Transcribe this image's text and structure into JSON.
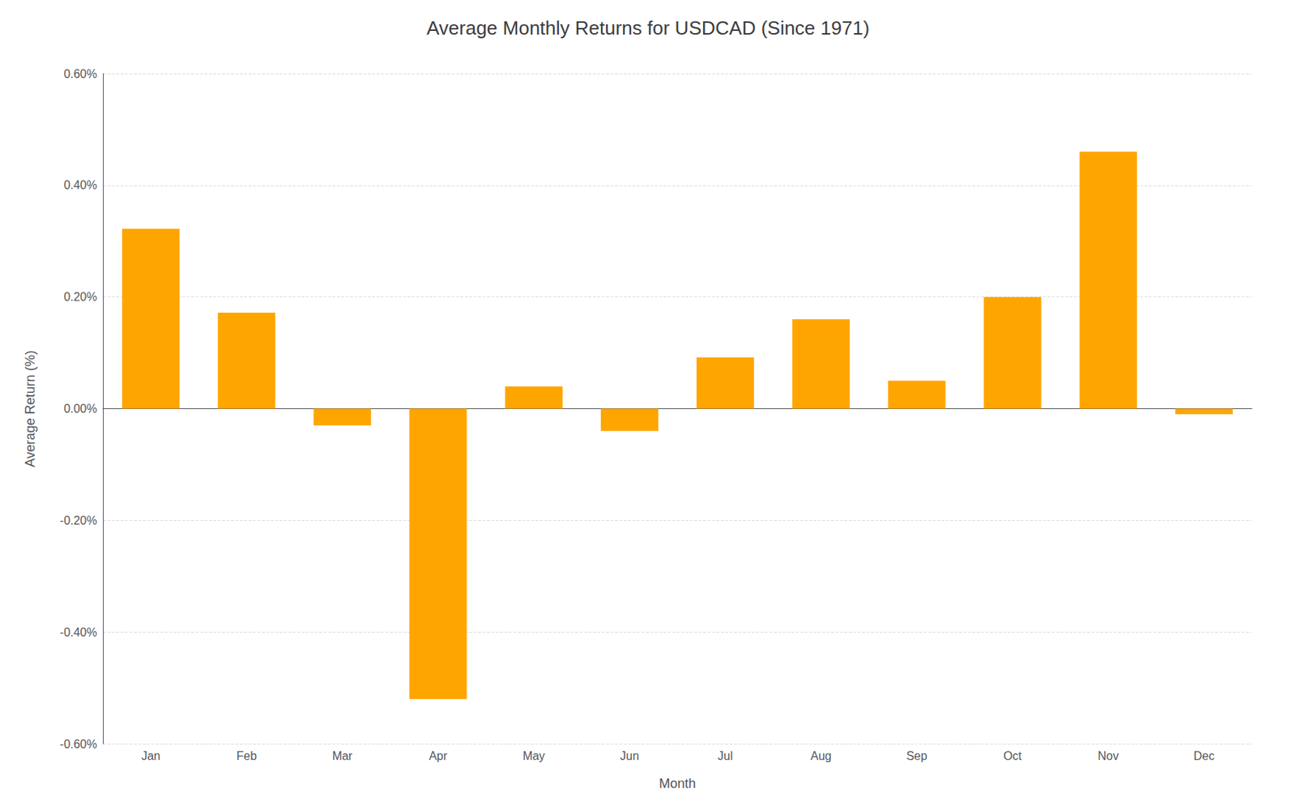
{
  "chart_data": {
    "type": "bar",
    "title": "Average Monthly Returns for USDCAD (Since 1971)",
    "xlabel": "Month",
    "ylabel": "Average Return (%)",
    "categories": [
      "Jan",
      "Feb",
      "Mar",
      "Apr",
      "May",
      "Jun",
      "Jul",
      "Aug",
      "Sep",
      "Oct",
      "Nov",
      "Dec"
    ],
    "values": [
      0.322,
      0.172,
      -0.03,
      -0.52,
      0.04,
      -0.04,
      0.092,
      0.16,
      0.05,
      0.2,
      0.46,
      -0.01
    ],
    "color": "#FFA500",
    "ylim": [
      -0.6,
      0.6
    ],
    "yticks": [
      {
        "value": -0.6,
        "label": "-0.60%"
      },
      {
        "value": -0.4,
        "label": "-0.40%"
      },
      {
        "value": -0.2,
        "label": "-0.20%"
      },
      {
        "value": 0.0,
        "label": "0.00%"
      },
      {
        "value": 0.2,
        "label": "0.20%"
      },
      {
        "value": 0.4,
        "label": "0.40%"
      },
      {
        "value": 0.6,
        "label": "0.60%"
      }
    ],
    "grid": true
  }
}
